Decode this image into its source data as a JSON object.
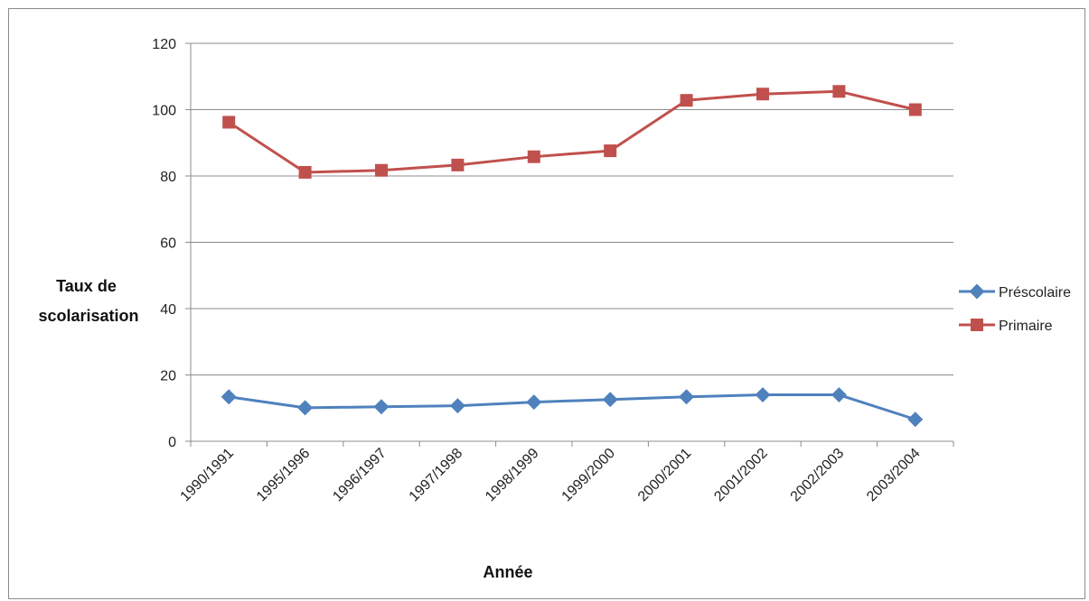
{
  "chart_data": {
    "type": "line",
    "title": "",
    "xlabel": "Année",
    "ylabel": "Taux de scolarisation",
    "ylabel_lines": [
      "Taux de",
      "scolarisation"
    ],
    "ylim": [
      0,
      120
    ],
    "yticks": [
      0,
      20,
      40,
      60,
      80,
      100,
      120
    ],
    "grid": true,
    "legend_position": "right",
    "categories": [
      "1990/1991",
      "1995/1996",
      "1996/1997",
      "1997/1998",
      "1998/1999",
      "1999/2000",
      "2000/2001",
      "2001/2002",
      "2002/2003",
      "2003/2004"
    ],
    "series": [
      {
        "name": "Préscolaire",
        "color": "#4f81bd",
        "marker": "diamond",
        "values": [
          13.4,
          10.1,
          10.4,
          10.7,
          11.8,
          12.6,
          13.4,
          14.0,
          14.0,
          6.6
        ]
      },
      {
        "name": "Primaire",
        "color": "#c0504d",
        "marker": "square",
        "values": [
          96.2,
          81.1,
          81.7,
          83.3,
          85.8,
          87.6,
          102.8,
          104.7,
          105.5,
          100.0
        ]
      }
    ]
  }
}
